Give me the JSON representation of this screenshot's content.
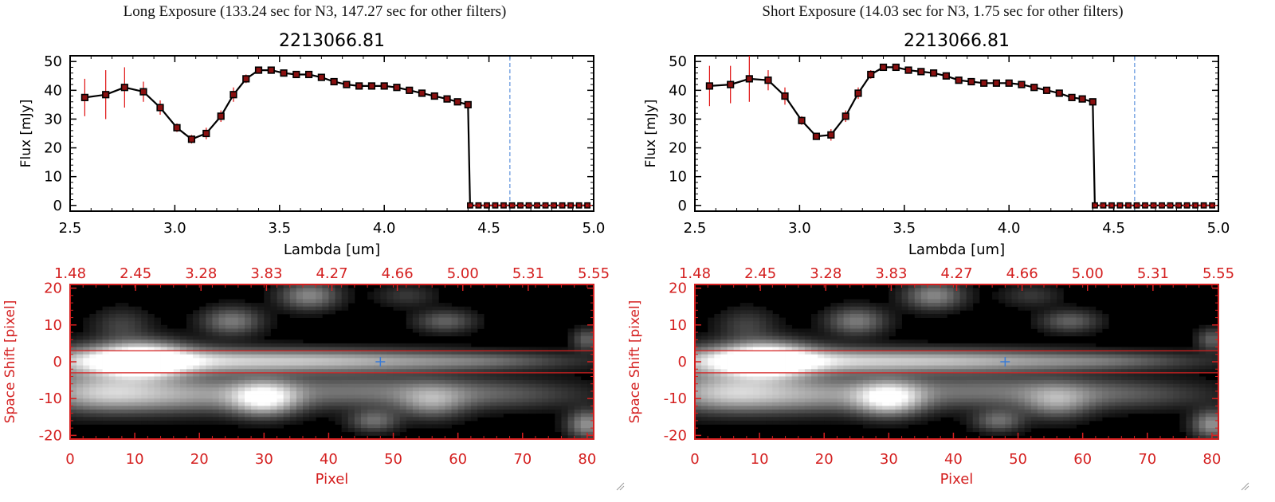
{
  "colors": {
    "spectrum_line": "#000000",
    "data_point": "#e01010",
    "error_bar": "#e01010",
    "axis_red": "#d42020",
    "cutoff_line": "#3a7bd5",
    "marker_blue": "#3a7bd5",
    "image_background": "#000000"
  },
  "icons": {
    "resize_grip": "resize-grip-icon",
    "source_marker": "plus-marker-icon"
  },
  "chart_data": [
    {
      "type": "line",
      "title": "Long Exposure (133.24 sec for N3, 147.27 sec for other filters)",
      "subtitle": "2213066.81",
      "xlabel": "Lambda [um]",
      "ylabel": "Flux [mJy]",
      "xlim": [
        2.5,
        5.0
      ],
      "ylim": [
        -2,
        52
      ],
      "xticks": [
        "2.5",
        "3.0",
        "3.5",
        "4.0",
        "4.5",
        "5.0"
      ],
      "yticks": [
        "0",
        "10",
        "20",
        "30",
        "40",
        "50"
      ],
      "cutoff_x": 4.6,
      "series": [
        {
          "x": [
            2.57,
            2.67,
            2.76,
            2.85,
            2.93,
            3.01,
            3.08,
            3.15,
            3.22,
            3.28,
            3.34,
            3.4,
            3.46,
            3.52,
            3.58,
            3.64,
            3.7,
            3.76,
            3.82,
            3.88,
            3.94,
            4.0,
            4.06,
            4.12,
            4.18,
            4.24,
            4.3,
            4.35,
            4.4
          ],
          "y": [
            37.5,
            38.5,
            41,
            39.5,
            34,
            27,
            23,
            25,
            31,
            38.5,
            44,
            47,
            47,
            46,
            45.5,
            45.5,
            44.5,
            43,
            42,
            41.5,
            41.5,
            41.5,
            41,
            40,
            39,
            38,
            37,
            36,
            35
          ],
          "yerr": [
            6.5,
            8.5,
            7,
            3.5,
            2.5,
            1.5,
            1.5,
            2,
            2,
            2.5,
            1.5,
            1,
            1,
            0.8,
            0.8,
            0.8,
            0.8,
            0.8,
            0.8,
            0.8,
            0.8,
            0.8,
            0.8,
            0.8,
            0.8,
            0.8,
            0.8,
            0.8,
            1
          ],
          "tail_x": [
            4.41,
            4.45,
            4.49,
            4.53,
            4.57,
            4.61,
            4.65,
            4.69,
            4.73,
            4.77,
            4.81,
            4.85,
            4.89,
            4.93,
            4.97
          ],
          "tail_y": 0
        }
      ],
      "image": {
        "xlabel": "Pixel",
        "ylabel": "Space Shift [pixel]",
        "xlim": [
          0,
          81
        ],
        "ylim": [
          -21,
          21
        ],
        "xticks": [
          "0",
          "10",
          "20",
          "30",
          "40",
          "50",
          "60",
          "70",
          "80"
        ],
        "yticks": [
          "-20",
          "-10",
          "0",
          "10",
          "20"
        ],
        "top_ticks": [
          "1.48",
          "2.45",
          "3.28",
          "3.83",
          "4.27",
          "4.66",
          "5.00",
          "5.31",
          "5.55"
        ],
        "aperture_half_width": 3,
        "marker": [
          48,
          0
        ]
      }
    },
    {
      "type": "line",
      "title": "Short Exposure (14.03 sec for N3, 1.75 sec for other filters)",
      "subtitle": "2213066.81",
      "xlabel": "Lambda [um]",
      "ylabel": "Flux [mJy]",
      "xlim": [
        2.5,
        5.0
      ],
      "ylim": [
        -2,
        52
      ],
      "xticks": [
        "2.5",
        "3.0",
        "3.5",
        "4.0",
        "4.5",
        "5.0"
      ],
      "yticks": [
        "0",
        "10",
        "20",
        "30",
        "40",
        "50"
      ],
      "cutoff_x": 4.6,
      "series": [
        {
          "x": [
            2.57,
            2.67,
            2.76,
            2.85,
            2.93,
            3.01,
            3.08,
            3.15,
            3.22,
            3.28,
            3.34,
            3.4,
            3.46,
            3.52,
            3.58,
            3.64,
            3.7,
            3.76,
            3.82,
            3.88,
            3.94,
            4.0,
            4.06,
            4.12,
            4.18,
            4.24,
            4.3,
            4.35,
            4.4
          ],
          "y": [
            41.5,
            42,
            44,
            43.5,
            38,
            29.5,
            24,
            24.5,
            31,
            39,
            45.5,
            48,
            48,
            47,
            46.5,
            46,
            45,
            43.5,
            43,
            42.5,
            42.5,
            42.5,
            42,
            41,
            40,
            39,
            37.5,
            37,
            36
          ],
          "yerr": [
            7,
            6.5,
            8,
            3.5,
            3,
            1.5,
            1,
            2,
            2,
            2,
            1.5,
            1,
            1,
            0.8,
            0.8,
            0.8,
            0.8,
            0.8,
            0.8,
            0.8,
            0.8,
            0.8,
            0.8,
            0.8,
            0.8,
            0.8,
            0.8,
            0.8,
            1
          ],
          "tail_x": [
            4.41,
            4.45,
            4.49,
            4.53,
            4.57,
            4.61,
            4.65,
            4.69,
            4.73,
            4.77,
            4.81,
            4.85,
            4.89,
            4.93,
            4.97
          ],
          "tail_y": 0
        }
      ],
      "image": {
        "xlabel": "Pixel",
        "ylabel": "Space Shift [pixel]",
        "xlim": [
          0,
          81
        ],
        "ylim": [
          -21,
          21
        ],
        "xticks": [
          "0",
          "10",
          "20",
          "30",
          "40",
          "50",
          "60",
          "70",
          "80"
        ],
        "yticks": [
          "-20",
          "-10",
          "0",
          "10",
          "20"
        ],
        "top_ticks": [
          "1.48",
          "2.45",
          "3.28",
          "3.83",
          "4.27",
          "4.66",
          "5.00",
          "5.31",
          "5.55"
        ],
        "aperture_half_width": 3,
        "marker": [
          48,
          0
        ]
      }
    }
  ]
}
